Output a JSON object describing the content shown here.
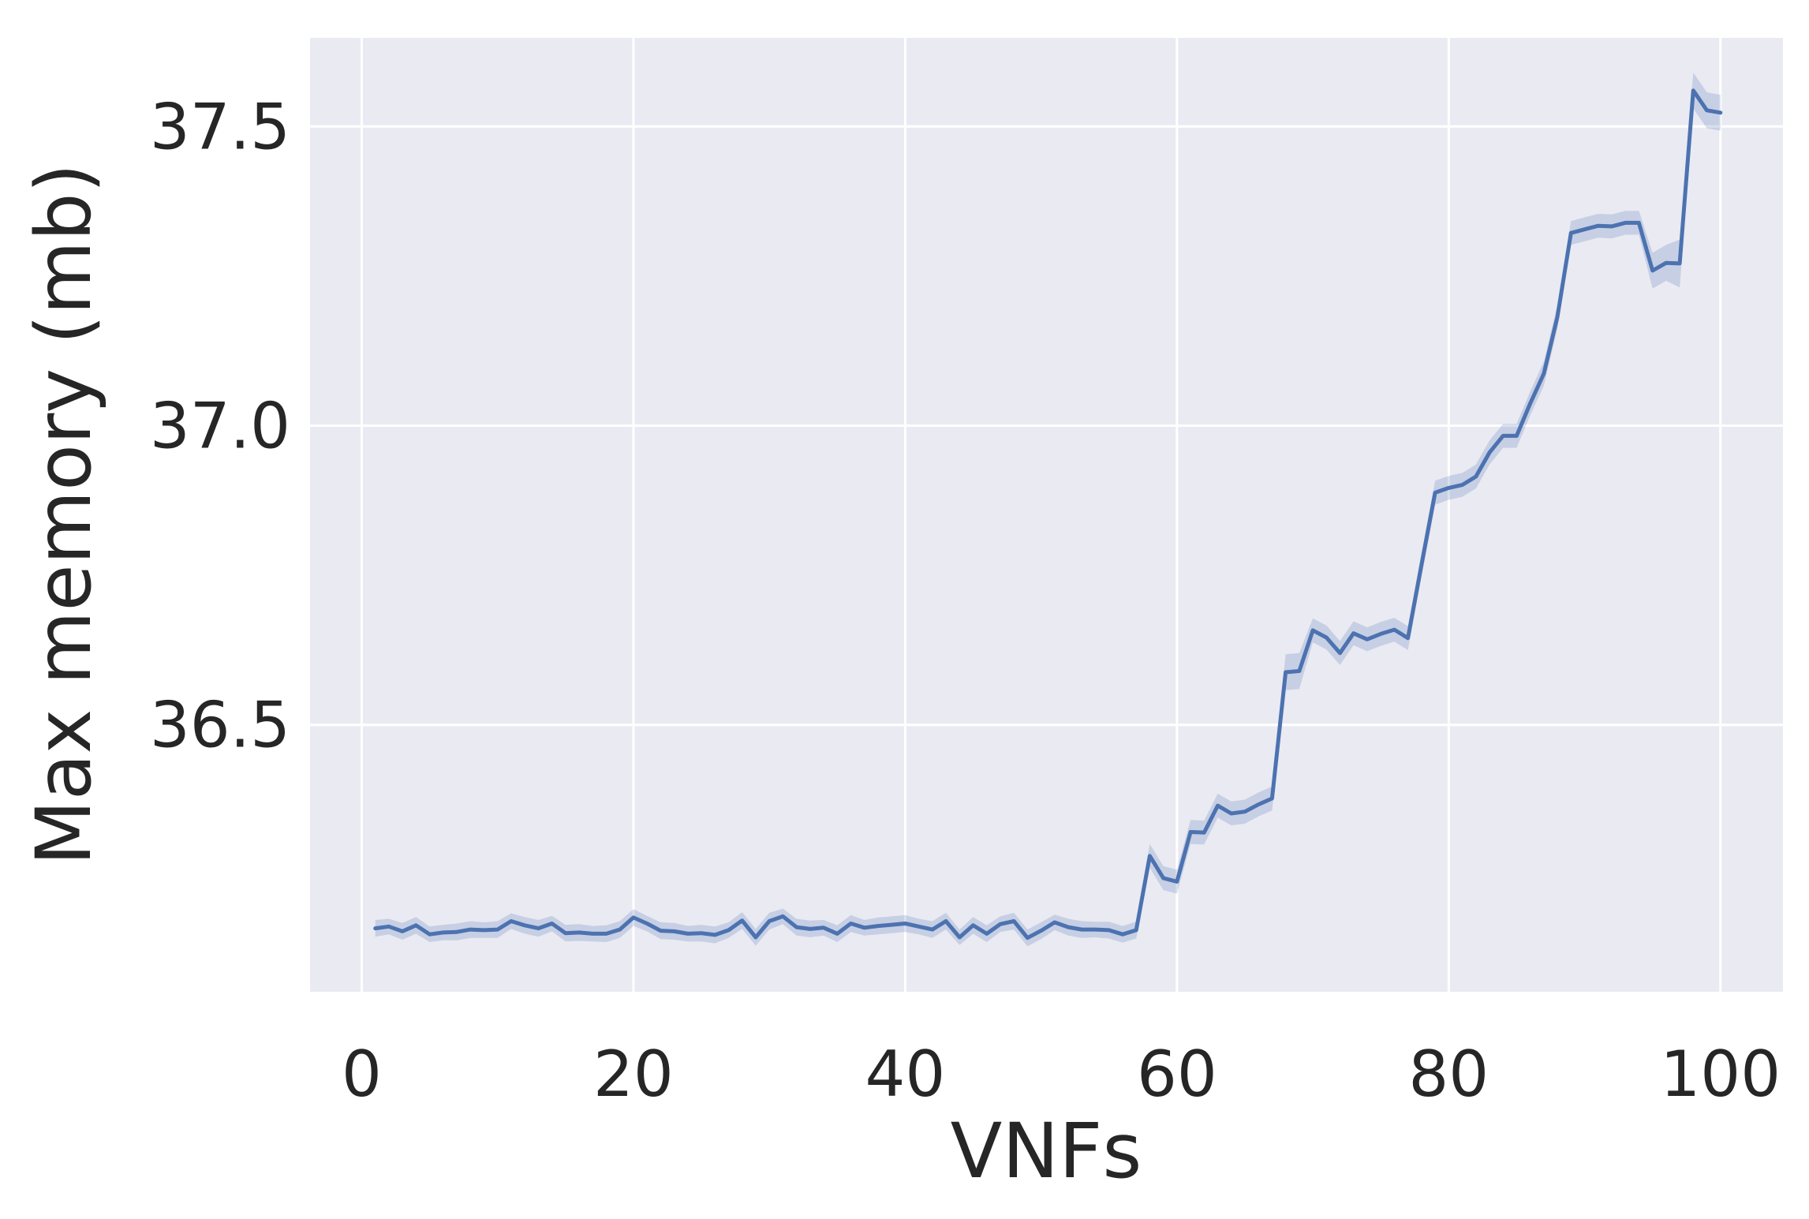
{
  "chart_data": {
    "type": "line",
    "title": "",
    "xlabel": "VNFs",
    "ylabel": "Max memory (mb)",
    "xlim": [
      -3.8,
      104.6
    ],
    "ylim": [
      36.054,
      37.648
    ],
    "xticks": [
      0,
      20,
      40,
      60,
      80,
      100
    ],
    "yticks": [
      36.5,
      37.0,
      37.5
    ],
    "ytick_labels": [
      "36.5",
      "37.0",
      "37.5"
    ],
    "grid": true,
    "legend": "none",
    "colors": {
      "background": "#eaeaf2",
      "grid": "#ffffff",
      "line": "#4c72b0",
      "band": "#4c72b0",
      "text": "#262626"
    },
    "series": [
      {
        "x": [
          1,
          2,
          3,
          4,
          5,
          6,
          7,
          8,
          9,
          10,
          11,
          12,
          13,
          14,
          15,
          16,
          17,
          18,
          19,
          20,
          21,
          22,
          23,
          24,
          25,
          26,
          27,
          28,
          29,
          30,
          31,
          32,
          33,
          34,
          35,
          36,
          37,
          38,
          39,
          40,
          41,
          42,
          43,
          44,
          45,
          46,
          47,
          48,
          49,
          50,
          51,
          52,
          53,
          54,
          55,
          56,
          57,
          58,
          59,
          60,
          61,
          62,
          63,
          64,
          65,
          66,
          67,
          68,
          69,
          70,
          71,
          72,
          73,
          74,
          75,
          76,
          77,
          78,
          79,
          80,
          81,
          82,
          83,
          84,
          85,
          86,
          87,
          88,
          89,
          90,
          91,
          92,
          93,
          94,
          95,
          96,
          97,
          98,
          99,
          100
        ],
        "y": [
          36.16,
          36.163,
          36.155,
          36.165,
          36.15,
          36.153,
          36.154,
          36.158,
          36.157,
          36.158,
          36.172,
          36.165,
          36.16,
          36.168,
          36.152,
          36.153,
          36.151,
          36.151,
          36.158,
          36.178,
          36.168,
          36.156,
          36.155,
          36.151,
          36.152,
          36.149,
          36.157,
          36.173,
          36.145,
          36.172,
          36.18,
          36.162,
          36.159,
          36.161,
          36.151,
          36.168,
          36.161,
          36.164,
          36.166,
          36.168,
          36.163,
          36.158,
          36.172,
          36.145,
          36.165,
          36.151,
          36.167,
          36.172,
          36.144,
          36.156,
          36.17,
          36.162,
          36.158,
          36.158,
          36.157,
          36.15,
          36.157,
          36.281,
          36.244,
          36.238,
          36.321,
          36.32,
          36.365,
          36.352,
          36.355,
          36.367,
          36.377,
          36.588,
          36.59,
          36.658,
          36.646,
          36.62,
          36.653,
          36.643,
          36.652,
          36.659,
          36.645,
          36.768,
          36.888,
          36.896,
          36.901,
          36.915,
          36.955,
          36.983,
          36.983,
          37.037,
          37.087,
          37.182,
          37.322,
          37.328,
          37.334,
          37.333,
          37.339,
          37.339,
          37.259,
          37.272,
          37.271,
          37.56,
          37.527,
          37.523
        ],
        "ci": [
          0.014,
          0.013,
          0.014,
          0.014,
          0.013,
          0.013,
          0.014,
          0.014,
          0.013,
          0.014,
          0.013,
          0.014,
          0.014,
          0.013,
          0.014,
          0.014,
          0.013,
          0.014,
          0.014,
          0.014,
          0.013,
          0.014,
          0.014,
          0.013,
          0.014,
          0.014,
          0.013,
          0.014,
          0.014,
          0.014,
          0.013,
          0.014,
          0.014,
          0.013,
          0.014,
          0.014,
          0.013,
          0.014,
          0.014,
          0.014,
          0.013,
          0.014,
          0.014,
          0.013,
          0.014,
          0.014,
          0.013,
          0.014,
          0.014,
          0.014,
          0.013,
          0.014,
          0.014,
          0.013,
          0.014,
          0.014,
          0.014,
          0.02,
          0.02,
          0.02,
          0.02,
          0.02,
          0.02,
          0.02,
          0.02,
          0.02,
          0.02,
          0.03,
          0.03,
          0.02,
          0.02,
          0.02,
          0.02,
          0.02,
          0.02,
          0.02,
          0.02,
          0.02,
          0.02,
          0.02,
          0.02,
          0.02,
          0.02,
          0.02,
          0.02,
          0.02,
          0.02,
          0.02,
          0.02,
          0.02,
          0.02,
          0.02,
          0.02,
          0.02,
          0.03,
          0.03,
          0.04,
          0.03,
          0.03,
          0.03
        ]
      }
    ]
  }
}
